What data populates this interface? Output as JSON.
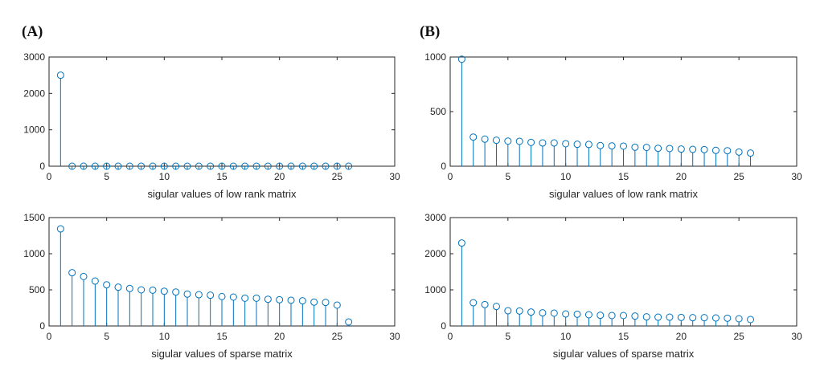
{
  "panels": [
    {
      "label": "(A)"
    },
    {
      "label": "(B)"
    }
  ],
  "chart_data": [
    {
      "type": "stem",
      "panel": "(A)",
      "title": "",
      "xlabel": "sigular values of low rank matrix",
      "ylabel": "",
      "xlim": [
        0,
        30
      ],
      "ylim": [
        0,
        3000
      ],
      "xticks": [
        0,
        5,
        10,
        15,
        20,
        25,
        30
      ],
      "yticks": [
        0,
        1000,
        2000,
        3000
      ],
      "x": [
        1,
        2,
        3,
        4,
        5,
        6,
        7,
        8,
        9,
        10,
        11,
        12,
        13,
        14,
        15,
        16,
        17,
        18,
        19,
        20,
        21,
        22,
        23,
        24,
        25,
        26
      ],
      "values": [
        2500,
        0,
        0,
        0,
        0,
        0,
        0,
        0,
        0,
        0,
        0,
        0,
        0,
        0,
        0,
        0,
        0,
        0,
        0,
        0,
        0,
        0,
        0,
        0,
        0,
        0
      ],
      "color": "#0072BD"
    },
    {
      "type": "stem",
      "panel": "(B)",
      "title": "",
      "xlabel": "sigular values of low rank matrix",
      "ylabel": "",
      "xlim": [
        0,
        30
      ],
      "ylim": [
        0,
        1000
      ],
      "xticks": [
        0,
        5,
        10,
        15,
        20,
        25,
        30
      ],
      "yticks": [
        0,
        500,
        1000
      ],
      "x": [
        1,
        2,
        3,
        4,
        5,
        6,
        7,
        8,
        9,
        10,
        11,
        12,
        13,
        14,
        15,
        16,
        17,
        18,
        19,
        20,
        21,
        22,
        23,
        24,
        25,
        26
      ],
      "values": [
        980,
        267,
        248,
        238,
        230,
        228,
        218,
        213,
        213,
        206,
        201,
        199,
        189,
        186,
        184,
        174,
        172,
        164,
        162,
        157,
        154,
        152,
        145,
        142,
        130,
        120
      ],
      "color": "#0072BD"
    },
    {
      "type": "stem",
      "panel": "(A)",
      "title": "",
      "xlabel": "sigular values of sparse matrix",
      "ylabel": "",
      "xlim": [
        0,
        30
      ],
      "ylim": [
        0,
        1500
      ],
      "xticks": [
        0,
        5,
        10,
        15,
        20,
        25,
        30
      ],
      "yticks": [
        0,
        500,
        1000,
        1500
      ],
      "x": [
        1,
        2,
        3,
        4,
        5,
        6,
        7,
        8,
        9,
        10,
        11,
        12,
        13,
        14,
        15,
        16,
        17,
        18,
        19,
        20,
        21,
        22,
        23,
        24,
        25,
        26
      ],
      "values": [
        1344,
        737,
        685,
        622,
        570,
        537,
        519,
        500,
        496,
        481,
        470,
        441,
        433,
        426,
        407,
        400,
        385,
        385,
        370,
        363,
        356,
        348,
        330,
        326,
        289,
        56
      ],
      "color": "#0072BD"
    },
    {
      "type": "stem",
      "panel": "(B)",
      "title": "",
      "xlabel": "sigular values of sparse matrix",
      "ylabel": "",
      "xlim": [
        0,
        30
      ],
      "ylim": [
        0,
        3000
      ],
      "xticks": [
        0,
        5,
        10,
        15,
        20,
        25,
        30
      ],
      "yticks": [
        0,
        1000,
        2000,
        3000
      ],
      "x": [
        1,
        2,
        3,
        4,
        5,
        6,
        7,
        8,
        9,
        10,
        11,
        12,
        13,
        14,
        15,
        16,
        17,
        18,
        19,
        20,
        21,
        22,
        23,
        24,
        25,
        26
      ],
      "values": [
        2296,
        644,
        593,
        541,
        422,
        415,
        385,
        363,
        356,
        333,
        326,
        311,
        296,
        289,
        289,
        274,
        252,
        244,
        244,
        237,
        230,
        230,
        222,
        215,
        200,
        178
      ],
      "color": "#0072BD"
    }
  ]
}
